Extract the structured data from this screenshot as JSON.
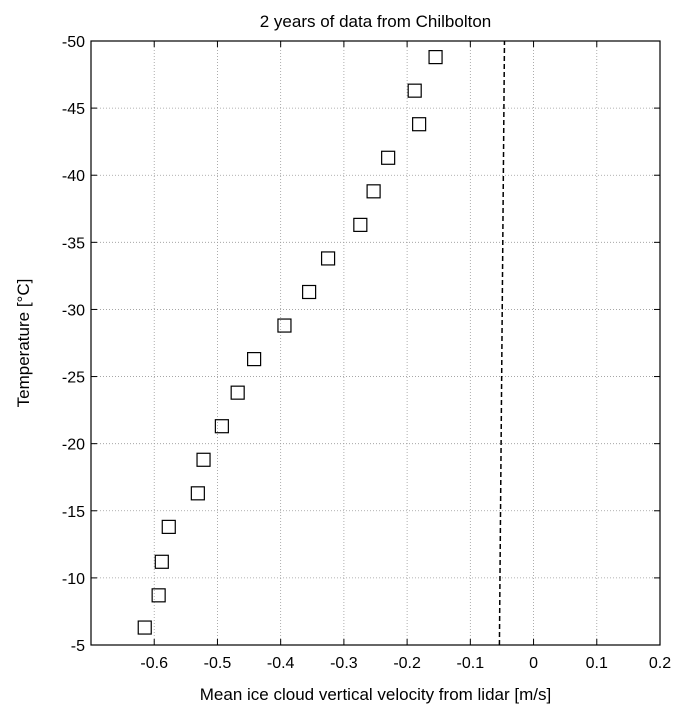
{
  "chart_data": {
    "type": "scatter",
    "title": "2 years of data from Chilbolton",
    "xlabel": "Mean ice cloud vertical velocity from lidar [m/s]",
    "ylabel": "Temperature [°C]",
    "xlim": [
      -0.7,
      0.2
    ],
    "ylim": [
      -5,
      -50
    ],
    "y_axis_reversed": true,
    "xticks": [
      -0.6,
      -0.5,
      -0.4,
      -0.3,
      -0.2,
      -0.1,
      0,
      0.1,
      0.2
    ],
    "xtick_labels": [
      "-0.6",
      "-0.5",
      "-0.4",
      "-0.3",
      "-0.2",
      "-0.1",
      "0",
      "0.1",
      "0.2"
    ],
    "yticks": [
      -5,
      -10,
      -15,
      -20,
      -25,
      -30,
      -35,
      -40,
      -45,
      -50
    ],
    "ytick_labels": [
      "-5",
      "-10",
      "-15",
      "-20",
      "-25",
      "-30",
      "-35",
      "-40",
      "-45",
      "-50"
    ],
    "grid": true,
    "marker": "open-square",
    "colors": {
      "marker": "#000000",
      "line": "#000000",
      "grid": "#999999"
    },
    "points": [
      {
        "x": -0.615,
        "y": -6.3
      },
      {
        "x": -0.593,
        "y": -8.7
      },
      {
        "x": -0.588,
        "y": -11.2
      },
      {
        "x": -0.577,
        "y": -13.8
      },
      {
        "x": -0.531,
        "y": -16.3
      },
      {
        "x": -0.522,
        "y": -18.8
      },
      {
        "x": -0.493,
        "y": -21.3
      },
      {
        "x": -0.468,
        "y": -23.8
      },
      {
        "x": -0.442,
        "y": -26.3
      },
      {
        "x": -0.394,
        "y": -28.8
      },
      {
        "x": -0.355,
        "y": -31.3
      },
      {
        "x": -0.325,
        "y": -33.8
      },
      {
        "x": -0.274,
        "y": -36.3
      },
      {
        "x": -0.253,
        "y": -38.8
      },
      {
        "x": -0.23,
        "y": -41.3
      },
      {
        "x": -0.181,
        "y": -43.8
      },
      {
        "x": -0.188,
        "y": -46.3
      },
      {
        "x": -0.155,
        "y": -48.8
      }
    ],
    "reference_line": {
      "style": "dashed",
      "points": [
        {
          "x": -0.054,
          "y": -5
        },
        {
          "x": -0.046,
          "y": -50
        }
      ]
    }
  }
}
